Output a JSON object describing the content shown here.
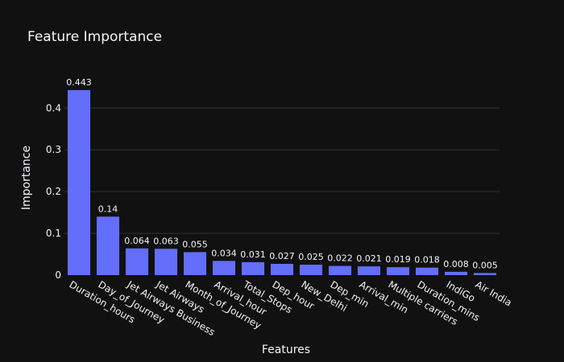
{
  "chart_data": {
    "type": "bar",
    "title": "Feature Importance",
    "xlabel": "Features",
    "ylabel": "Importance",
    "categories": [
      "Duration_hours",
      "Day_of_Journey",
      "Jet Airways Business",
      "Jet Airways",
      "Month_of_Journey",
      "Arrival_hour",
      "Total_Stops",
      "Dep_hour",
      "New_Delhi",
      "Dep_min",
      "Arrival_min",
      "Multiple carriers",
      "Duration_mins",
      "IndiGo",
      "Air India"
    ],
    "values": [
      0.443,
      0.14,
      0.064,
      0.063,
      0.055,
      0.034,
      0.031,
      0.027,
      0.025,
      0.022,
      0.021,
      0.019,
      0.018,
      0.008,
      0.005
    ],
    "data_labels": [
      "0.443",
      "0.14",
      "0.064",
      "0.063",
      "0.055",
      "0.034",
      "0.031",
      "0.027",
      "0.025",
      "0.022",
      "0.021",
      "0.019",
      "0.018",
      "0.008",
      "0.005"
    ],
    "yticks": [
      0,
      0.1,
      0.2,
      0.3,
      0.4
    ],
    "ytick_labels": [
      "0",
      "0.1",
      "0.2",
      "0.3",
      "0.4"
    ],
    "ylim": [
      0,
      0.466
    ],
    "grid": true,
    "bar_color": "#636efa",
    "background": "#111111",
    "grid_color": "#283442"
  }
}
